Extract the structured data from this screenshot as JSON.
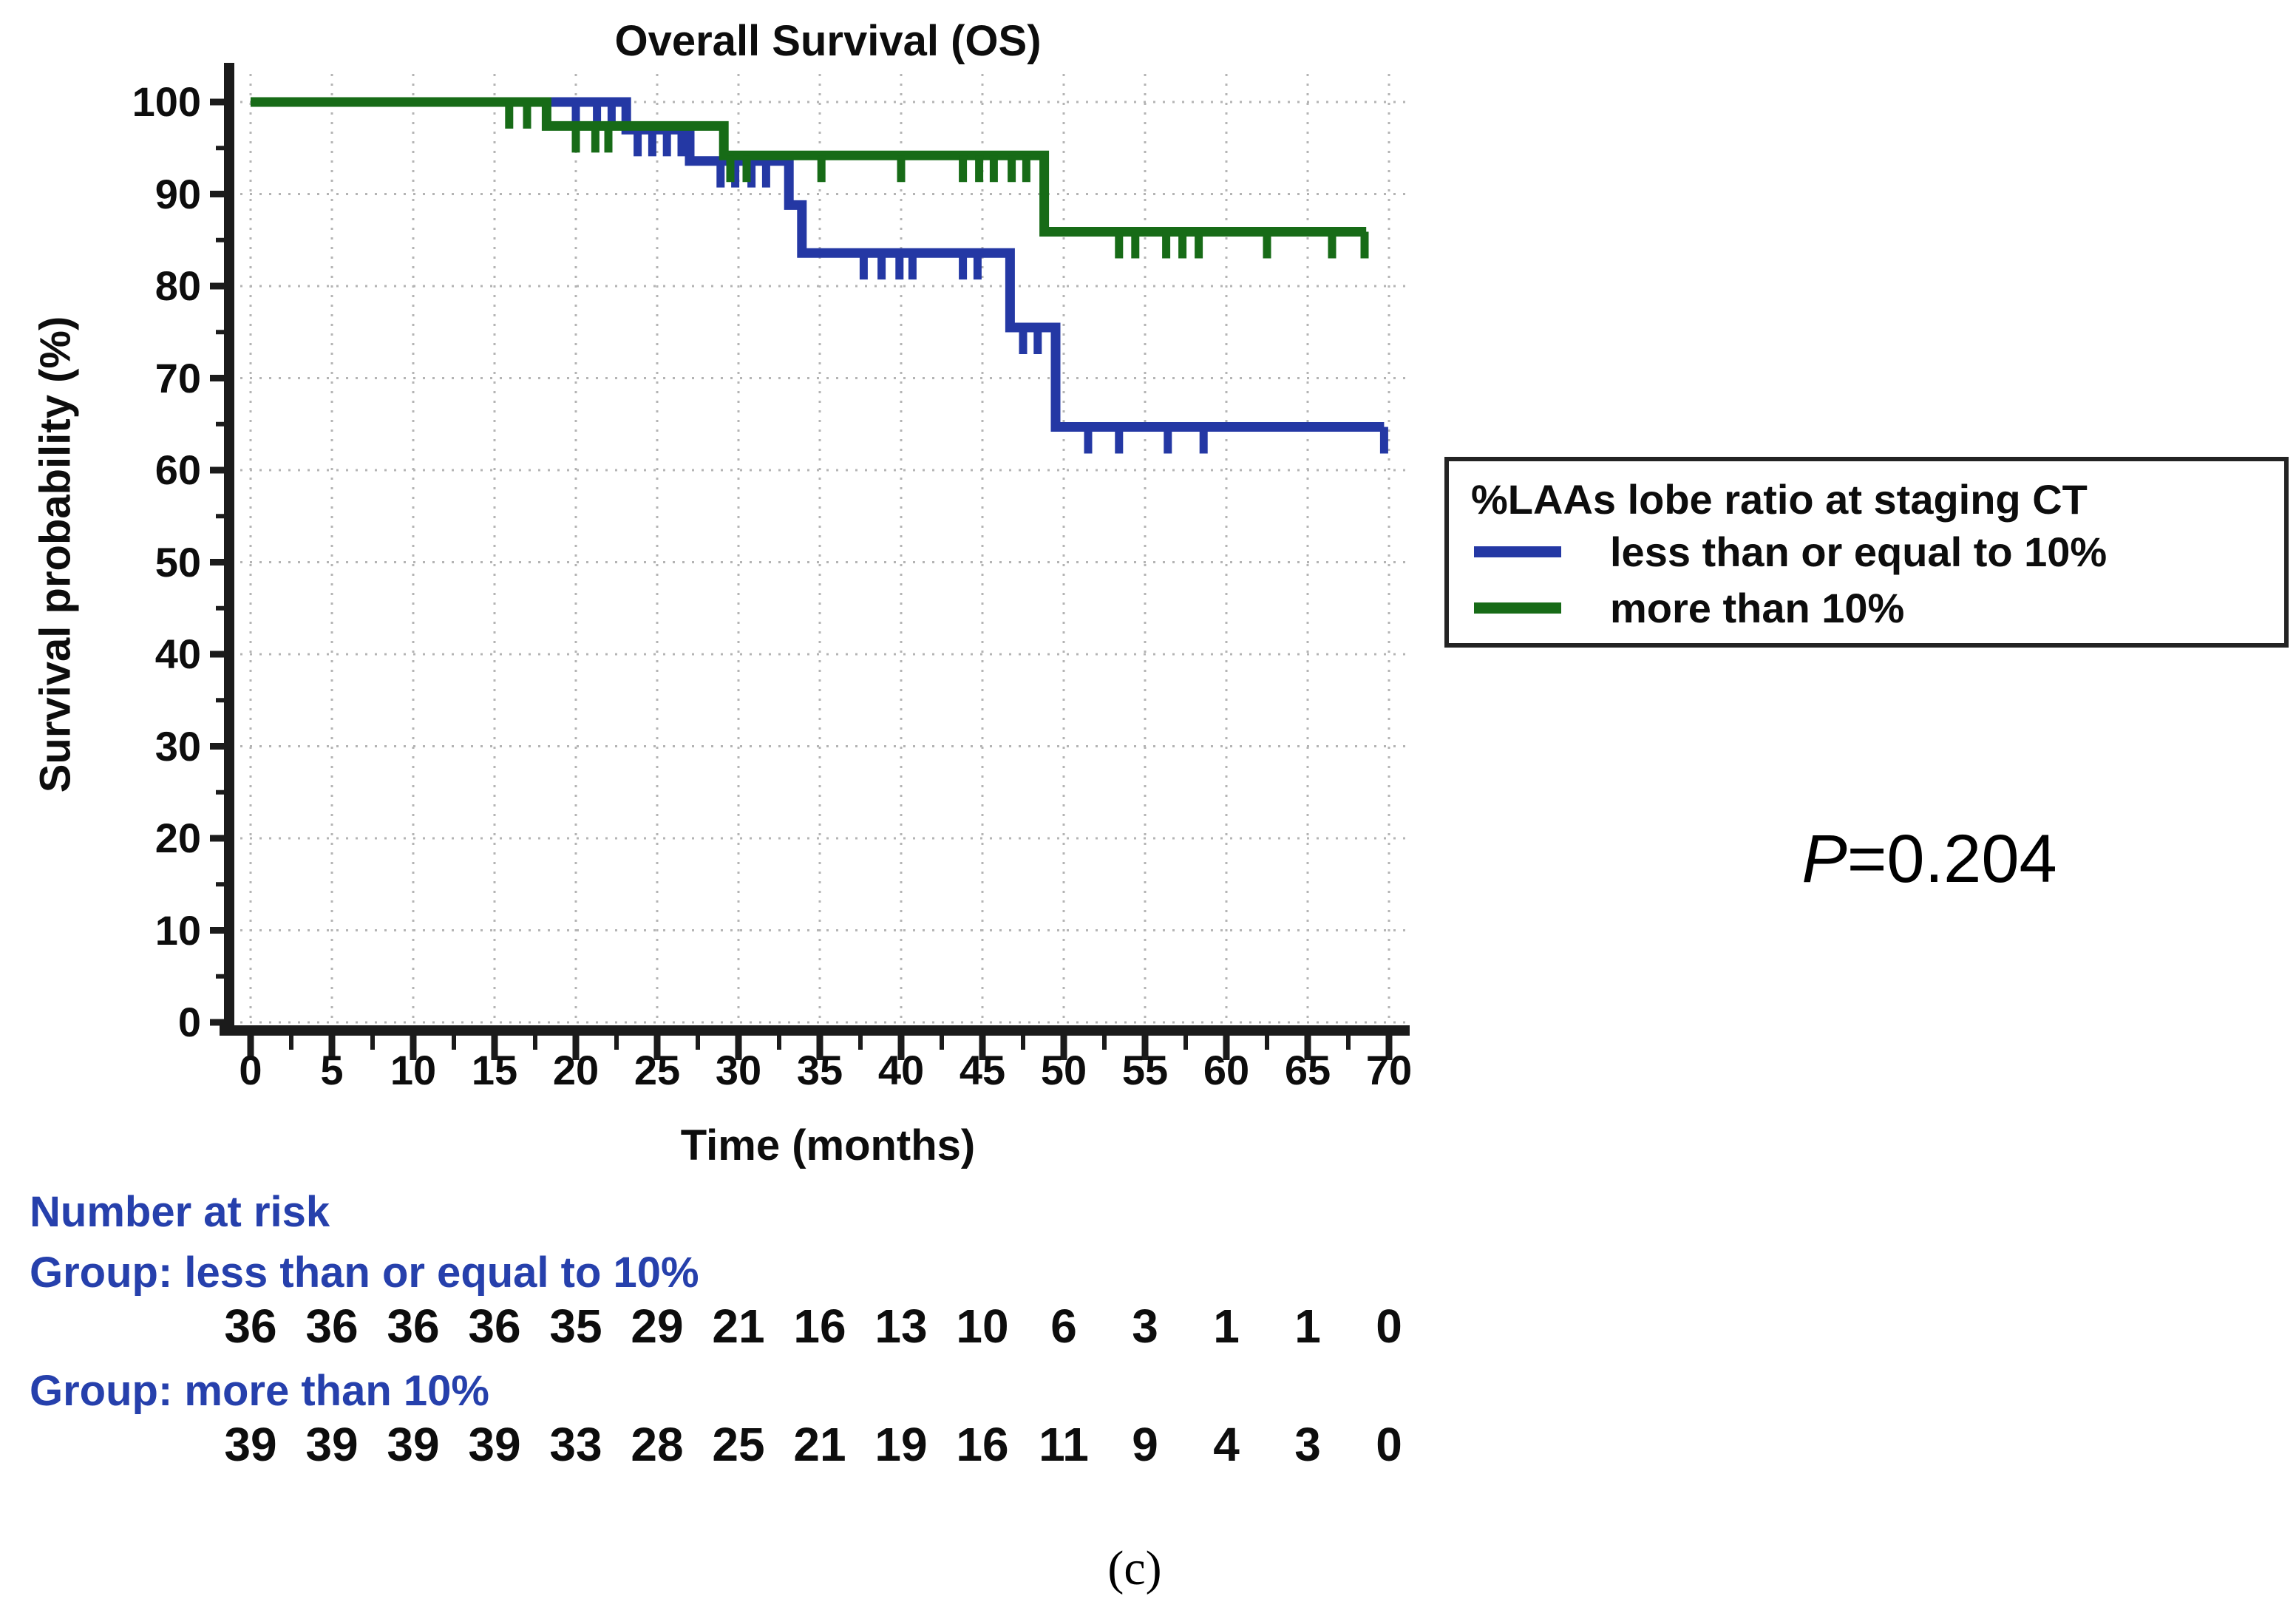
{
  "figure": {
    "title": "Overall Survival (OS)",
    "panel_label": "(c)",
    "p_label": "P",
    "p_value": "=0.204"
  },
  "axes": {
    "x": {
      "label": "Time (months)",
      "min": 0,
      "max": 70,
      "tick_step": 5,
      "ticks": [
        0,
        5,
        10,
        15,
        20,
        25,
        30,
        35,
        40,
        45,
        50,
        55,
        60,
        65,
        70
      ]
    },
    "y": {
      "label": "Survival probability (%)",
      "min": 0,
      "max": 100,
      "tick_step": 10,
      "ticks": [
        100,
        90,
        80,
        70,
        60,
        50,
        40,
        30,
        20,
        10,
        0
      ]
    }
  },
  "legend": {
    "title": "%LAAs lobe ratio at staging CT",
    "entries": [
      {
        "label": "less than or equal to 10%",
        "color": "#2438a4"
      },
      {
        "label": "more than 10%",
        "color": "#176b17"
      }
    ]
  },
  "colors": {
    "blue_curve": "#2438a4",
    "green_curve": "#176b17",
    "blue_text": "#2640ac",
    "grid": "#b4b4b4",
    "axis": "#1b1b1b"
  },
  "chart_data": {
    "type": "line",
    "subtype": "kaplan-meier-step",
    "title": "Overall Survival (OS)",
    "xlabel": "Time (months)",
    "ylabel": "Survival probability (%)",
    "xlim": [
      0,
      70
    ],
    "ylim": [
      0,
      100
    ],
    "grid": true,
    "legend_position": "right",
    "p_value_text": "P=0.204",
    "series": [
      {
        "name": "less than or equal to 10%",
        "color": "#2438a4",
        "step": "post",
        "points": [
          [
            0,
            100
          ],
          [
            23.1,
            100
          ],
          [
            23.1,
            97.0
          ],
          [
            27.0,
            97.0
          ],
          [
            27.0,
            93.6
          ],
          [
            33.1,
            93.6
          ],
          [
            33.1,
            88.8
          ],
          [
            33.9,
            88.8
          ],
          [
            33.9,
            83.6
          ],
          [
            46.7,
            83.6
          ],
          [
            46.7,
            75.5
          ],
          [
            49.5,
            75.5
          ],
          [
            49.5,
            64.7
          ],
          [
            69.7,
            64.7
          ]
        ],
        "censor_marks": [
          [
            20.0,
            100
          ],
          [
            21.3,
            100
          ],
          [
            22.2,
            100
          ],
          [
            23.8,
            97.0
          ],
          [
            24.7,
            97.0
          ],
          [
            25.6,
            97.0
          ],
          [
            26.5,
            97.0
          ],
          [
            28.9,
            93.6
          ],
          [
            29.8,
            93.6
          ],
          [
            30.8,
            93.6
          ],
          [
            31.7,
            93.6
          ],
          [
            37.7,
            83.6
          ],
          [
            38.8,
            83.6
          ],
          [
            39.9,
            83.6
          ],
          [
            40.7,
            83.6
          ],
          [
            43.8,
            83.6
          ],
          [
            44.7,
            83.6
          ],
          [
            47.5,
            75.5
          ],
          [
            48.4,
            75.5
          ],
          [
            51.5,
            64.7
          ],
          [
            53.4,
            64.7
          ],
          [
            56.4,
            64.7
          ],
          [
            58.6,
            64.7
          ],
          [
            69.7,
            64.7
          ]
        ]
      },
      {
        "name": "more than 10%",
        "color": "#176b17",
        "step": "post",
        "points": [
          [
            0,
            100
          ],
          [
            18.2,
            100
          ],
          [
            18.2,
            97.4
          ],
          [
            29.1,
            97.4
          ],
          [
            29.1,
            94.2
          ],
          [
            48.8,
            94.2
          ],
          [
            48.8,
            85.9
          ],
          [
            68.6,
            85.9
          ]
        ],
        "censor_marks": [
          [
            15.9,
            100
          ],
          [
            17.0,
            100
          ],
          [
            20.0,
            97.4
          ],
          [
            21.2,
            97.4
          ],
          [
            22.0,
            97.4
          ],
          [
            29.5,
            94.2
          ],
          [
            30.5,
            94.2
          ],
          [
            35.1,
            94.2
          ],
          [
            40.0,
            94.2
          ],
          [
            43.8,
            94.2
          ],
          [
            44.8,
            94.2
          ],
          [
            45.7,
            94.2
          ],
          [
            46.8,
            94.2
          ],
          [
            47.7,
            94.2
          ],
          [
            53.4,
            85.9
          ],
          [
            54.4,
            85.9
          ],
          [
            56.3,
            85.9
          ],
          [
            57.3,
            85.9
          ],
          [
            58.3,
            85.9
          ],
          [
            62.5,
            85.9
          ],
          [
            66.5,
            85.9
          ],
          [
            68.5,
            85.9
          ]
        ]
      }
    ]
  },
  "risk_table": {
    "header": "Number at risk",
    "times": [
      0,
      5,
      10,
      15,
      20,
      25,
      30,
      35,
      40,
      45,
      50,
      55,
      60,
      65,
      70
    ],
    "groups": [
      {
        "label": "Group: less than or equal to 10%",
        "counts": [
          36,
          36,
          36,
          36,
          35,
          29,
          21,
          16,
          13,
          10,
          6,
          3,
          1,
          1,
          0
        ]
      },
      {
        "label": "Group: more than 10%",
        "counts": [
          39,
          39,
          39,
          39,
          33,
          28,
          25,
          21,
          19,
          16,
          11,
          9,
          4,
          3,
          0
        ]
      }
    ]
  }
}
